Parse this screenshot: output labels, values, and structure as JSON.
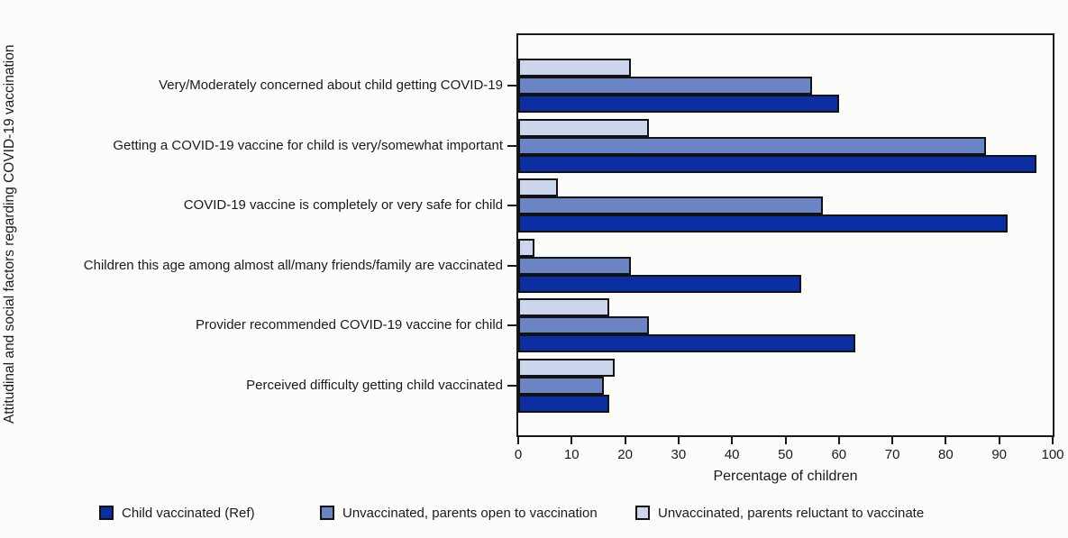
{
  "chart_data": {
    "type": "bar",
    "orientation": "horizontal",
    "title": "",
    "xlabel": "Percentage of children",
    "ylabel": "Attitudinal and social factors regarding COVID-19 vaccination",
    "xlim": [
      0,
      100
    ],
    "xticks": [
      0,
      10,
      20,
      30,
      40,
      50,
      60,
      70,
      80,
      90,
      100
    ],
    "grid": false,
    "legend_position": "bottom",
    "bar_border_color": "#121212",
    "categories": [
      "Very/Moderately concerned about child getting COVID-19",
      "Getting a COVID-19 vaccine for child is very/somewhat important",
      "COVID-19 vaccine is completely or very safe for child",
      "Children this age among almost all/many friends/family are vaccinated",
      "Provider recommended COVID-19 vaccine for child",
      "Perceived difficulty getting child vaccinated"
    ],
    "series": [
      {
        "name": "Child vaccinated (Ref)",
        "color": "#0b2ea3",
        "values": [
          60,
          97,
          91.5,
          53,
          63,
          17
        ]
      },
      {
        "name": "Unvaccinated, parents open to vaccination",
        "color": "#6b84c4",
        "values": [
          55,
          87.5,
          57,
          21,
          24.5,
          16
        ]
      },
      {
        "name": "Unvaccinated, parents reluctant to vaccinate",
        "color": "#ccd7ee",
        "values": [
          21,
          24.5,
          7.5,
          3,
          17,
          18
        ]
      }
    ],
    "bar_order_top_to_bottom": [
      "Unvaccinated, parents reluctant to vaccinate",
      "Unvaccinated, parents open to vaccination",
      "Child vaccinated (Ref)"
    ]
  }
}
